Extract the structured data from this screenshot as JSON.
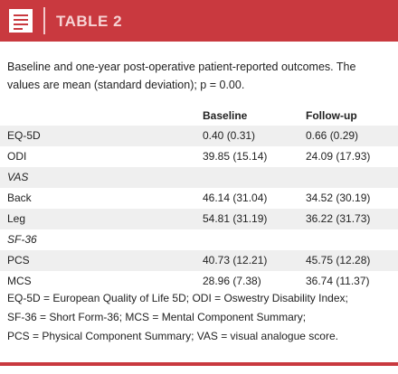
{
  "header": {
    "title": "TABLE 2"
  },
  "caption": "Baseline and one-year post-operative patient-reported outcomes. The values are mean (standard deviation); p = 0.00.",
  "table": {
    "columns": [
      "Baseline",
      "Follow-up"
    ],
    "rows": [
      [
        "EQ-5D",
        "0.40 (0.31)",
        "0.66 (0.29)"
      ],
      [
        "ODI",
        "39.85 (15.14)",
        "24.09 (17.93)"
      ],
      [
        "VAS"
      ],
      [
        "Back",
        "46.14 (31.04)",
        "34.52 (30.19)"
      ],
      [
        "Leg",
        "54.81 (31.19)",
        "36.22 (31.73)"
      ],
      [
        "SF-36"
      ],
      [
        "PCS",
        "40.73 (12.21)",
        "45.75 (12.28)"
      ],
      [
        "MCS",
        "28.96 (7.38)",
        "36.74 (11.37)"
      ]
    ]
  },
  "footnote": [
    "EQ-5D = European Quality of Life 5D;  ODI = Oswestry Disability Index;",
    "SF-36 = Short Form-36;  MCS = Mental Component Summary;",
    "PCS = Physical Component Summary;  VAS = visual analogue score."
  ]
}
